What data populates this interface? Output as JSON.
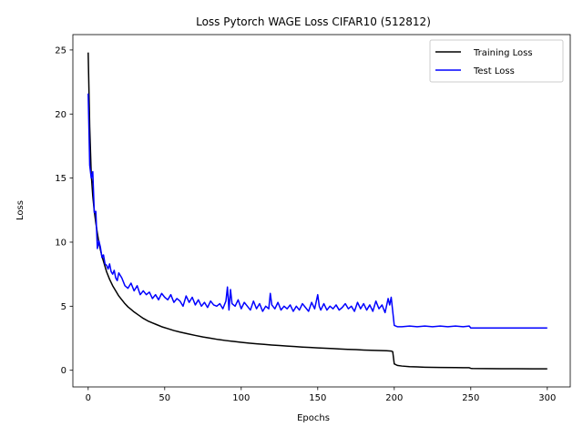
{
  "chart_data": {
    "type": "line",
    "title": "Loss Pytorch WAGE Loss CIFAR10 (512812)",
    "xlabel": "Epochs",
    "ylabel": "Loss",
    "xlim": [
      -10,
      315
    ],
    "ylim": [
      -1.3,
      26.2
    ],
    "xticks": [
      0,
      50,
      100,
      150,
      200,
      250,
      300
    ],
    "yticks": [
      0,
      5,
      10,
      15,
      20,
      25
    ],
    "grid": false,
    "legend_position": "top-right",
    "series": [
      {
        "name": "Training Loss",
        "color": "#000000",
        "x": [
          0,
          1,
          2,
          3,
          4,
          5,
          6,
          7,
          8,
          9,
          10,
          12,
          14,
          16,
          18,
          20,
          22,
          24,
          26,
          28,
          30,
          33,
          36,
          39,
          42,
          45,
          48,
          52,
          56,
          60,
          65,
          70,
          75,
          80,
          85,
          90,
          95,
          100,
          105,
          110,
          115,
          120,
          125,
          130,
          135,
          140,
          145,
          150,
          155,
          160,
          165,
          170,
          175,
          180,
          185,
          190,
          195,
          198,
          199,
          200,
          202,
          205,
          210,
          215,
          220,
          230,
          240,
          249,
          250,
          251,
          260,
          270,
          280,
          290,
          300
        ],
        "y": [
          24.8,
          19.0,
          15.3,
          13.6,
          12.4,
          11.5,
          10.7,
          10.0,
          9.4,
          8.9,
          8.5,
          7.7,
          7.1,
          6.6,
          6.2,
          5.8,
          5.5,
          5.2,
          4.95,
          4.75,
          4.55,
          4.3,
          4.05,
          3.85,
          3.7,
          3.55,
          3.4,
          3.25,
          3.1,
          2.98,
          2.85,
          2.72,
          2.6,
          2.5,
          2.4,
          2.32,
          2.25,
          2.18,
          2.12,
          2.07,
          2.02,
          1.97,
          1.93,
          1.89,
          1.85,
          1.81,
          1.78,
          1.75,
          1.72,
          1.69,
          1.66,
          1.63,
          1.61,
          1.58,
          1.56,
          1.54,
          1.52,
          1.5,
          1.45,
          0.5,
          0.38,
          0.33,
          0.28,
          0.26,
          0.24,
          0.22,
          0.21,
          0.2,
          0.15,
          0.14,
          0.13,
          0.12,
          0.12,
          0.11,
          0.11
        ]
      },
      {
        "name": "Test Loss",
        "color": "#0000ff",
        "x": [
          0,
          1,
          2,
          3,
          4,
          5,
          6,
          7,
          8,
          9,
          10,
          11,
          12,
          13,
          14,
          15,
          16,
          17,
          18,
          19,
          20,
          22,
          24,
          26,
          28,
          30,
          32,
          34,
          36,
          38,
          40,
          42,
          44,
          46,
          48,
          50,
          52,
          54,
          56,
          58,
          60,
          62,
          64,
          66,
          68,
          70,
          72,
          74,
          76,
          78,
          80,
          82,
          84,
          86,
          88,
          90,
          91,
          92,
          93,
          94,
          96,
          98,
          100,
          102,
          104,
          106,
          108,
          110,
          112,
          114,
          116,
          118,
          119,
          120,
          122,
          124,
          126,
          128,
          130,
          132,
          134,
          136,
          138,
          140,
          142,
          144,
          146,
          148,
          150,
          151,
          152,
          154,
          156,
          158,
          160,
          162,
          164,
          166,
          168,
          170,
          172,
          174,
          176,
          178,
          180,
          182,
          184,
          186,
          188,
          190,
          192,
          194,
          196,
          197,
          198,
          199,
          200,
          202,
          205,
          210,
          215,
          220,
          225,
          230,
          235,
          240,
          245,
          249,
          250,
          252,
          260,
          270,
          280,
          290,
          300
        ],
        "y": [
          21.6,
          16.0,
          15.0,
          15.5,
          12.3,
          12.4,
          9.5,
          10.1,
          9.6,
          8.8,
          9.0,
          8.3,
          8.2,
          7.9,
          8.3,
          7.7,
          7.5,
          7.8,
          7.2,
          7.0,
          7.6,
          7.2,
          6.6,
          6.4,
          6.8,
          6.2,
          6.6,
          5.9,
          6.2,
          5.9,
          6.1,
          5.6,
          5.9,
          5.5,
          6.0,
          5.7,
          5.5,
          5.9,
          5.3,
          5.6,
          5.4,
          5.0,
          5.8,
          5.3,
          5.7,
          5.1,
          5.5,
          5.0,
          5.3,
          4.9,
          5.4,
          5.1,
          5.0,
          5.2,
          4.8,
          5.4,
          6.5,
          4.7,
          6.3,
          5.2,
          5.0,
          5.5,
          4.8,
          5.3,
          5.0,
          4.7,
          5.4,
          4.8,
          5.2,
          4.6,
          5.0,
          4.8,
          6.0,
          5.1,
          4.8,
          5.3,
          4.7,
          5.0,
          4.8,
          5.1,
          4.6,
          5.0,
          4.7,
          5.2,
          4.9,
          4.6,
          5.3,
          4.8,
          5.9,
          5.0,
          4.7,
          5.2,
          4.7,
          5.0,
          4.8,
          5.1,
          4.7,
          4.9,
          5.2,
          4.8,
          5.0,
          4.6,
          5.3,
          4.8,
          5.2,
          4.7,
          5.1,
          4.6,
          5.4,
          4.8,
          5.1,
          4.5,
          5.6,
          5.1,
          5.7,
          4.6,
          3.5,
          3.4,
          3.4,
          3.45,
          3.4,
          3.45,
          3.4,
          3.45,
          3.4,
          3.45,
          3.4,
          3.45,
          3.3,
          3.3,
          3.3,
          3.3,
          3.3,
          3.3,
          3.3
        ]
      }
    ]
  }
}
